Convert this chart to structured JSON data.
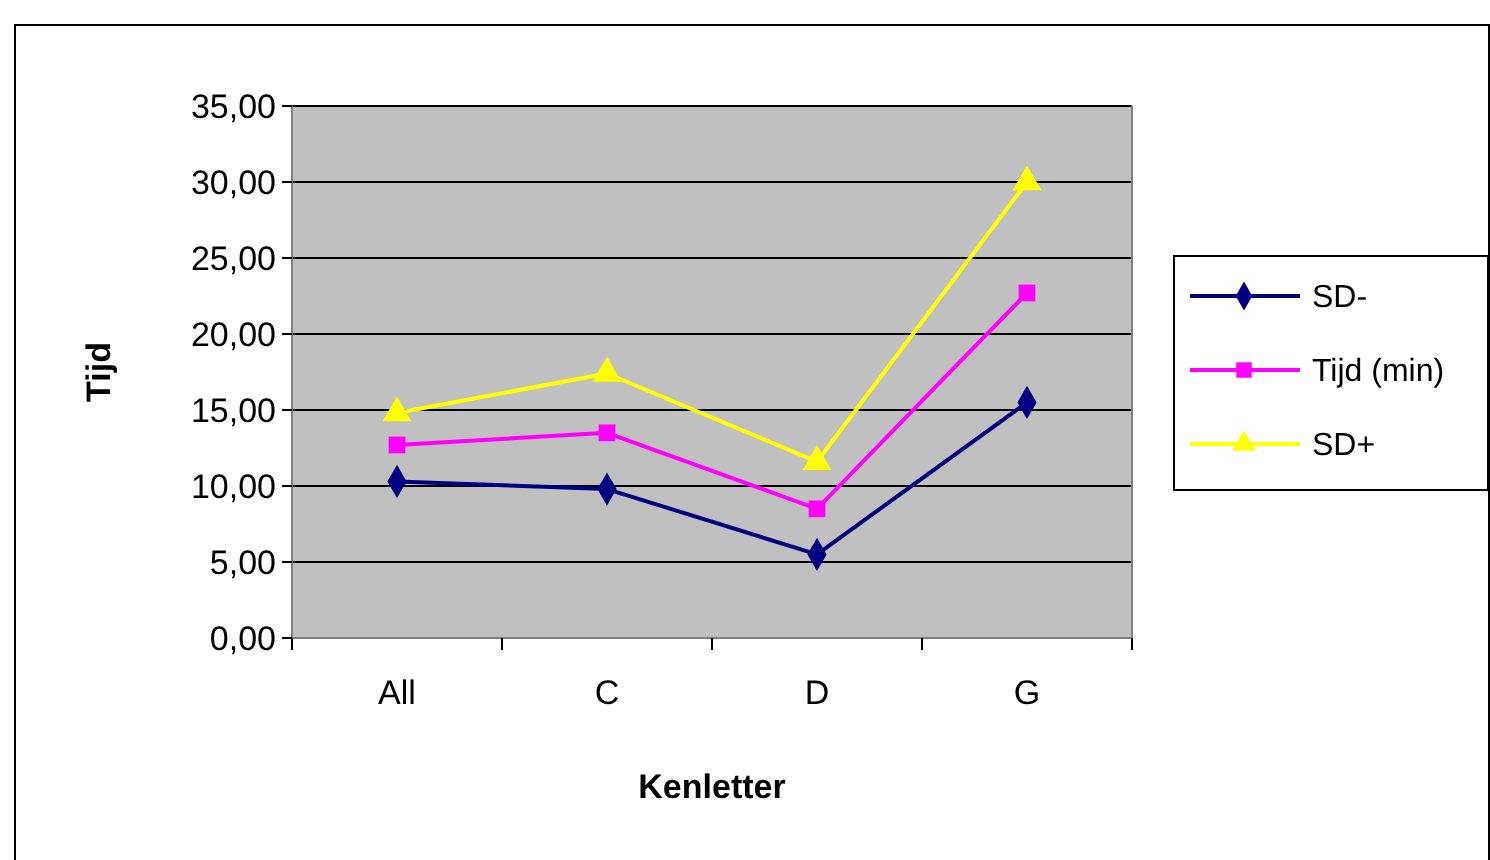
{
  "chart_data": {
    "type": "line",
    "xlabel": "Kenletter",
    "ylabel": "Tijd",
    "categories": [
      "All",
      "C",
      "D",
      "G"
    ],
    "series": [
      {
        "name": "SD-",
        "color": "#000080",
        "marker": "diamond",
        "values": [
          10.3,
          9.8,
          5.5,
          15.5
        ]
      },
      {
        "name": "Tijd (min)",
        "color": "#ff00ff",
        "marker": "square",
        "values": [
          12.7,
          13.5,
          8.5,
          22.7
        ]
      },
      {
        "name": "SD+",
        "color": "#ffff00",
        "marker": "triangle",
        "values": [
          14.8,
          17.4,
          11.6,
          30.0
        ]
      }
    ],
    "ylim": [
      0,
      35
    ],
    "yticks": [
      {
        "value": 0,
        "label": "0,00"
      },
      {
        "value": 5,
        "label": "5,00"
      },
      {
        "value": 10,
        "label": "10,00"
      },
      {
        "value": 15,
        "label": "15,00"
      },
      {
        "value": 20,
        "label": "20,00"
      },
      {
        "value": 25,
        "label": "25,00"
      },
      {
        "value": 30,
        "label": "30,00"
      },
      {
        "value": 35,
        "label": "35,00"
      }
    ],
    "grid": "y",
    "legend": "right",
    "line_style": "solid"
  }
}
